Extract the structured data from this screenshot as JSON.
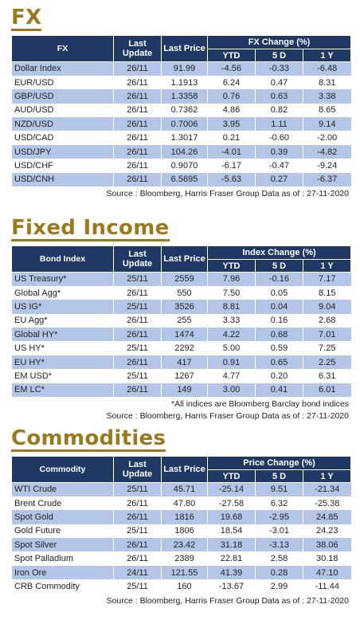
{
  "fx": {
    "title": "FX",
    "headers": {
      "name": "FX",
      "update": "Last Update",
      "price": "Last Price",
      "group": "FX Change (%)",
      "ytd": "YTD",
      "d5": "5 D",
      "y1": "1 Y"
    },
    "rows": [
      {
        "name": "Dollar Index",
        "update": "26/11",
        "price": "91.99",
        "ytd": "-4.56",
        "d5": "-0.33",
        "y1": "-6.48"
      },
      {
        "name": "EUR/USD",
        "update": "26/11",
        "price": "1.1913",
        "ytd": "6.24",
        "d5": "0.47",
        "y1": "8.31"
      },
      {
        "name": "GBP/USD",
        "update": "26/11",
        "price": "1.3358",
        "ytd": "0.76",
        "d5": "0.63",
        "y1": "3.38"
      },
      {
        "name": "AUD/USD",
        "update": "26/11",
        "price": "0.7362",
        "ytd": "4.86",
        "d5": "0.82",
        "y1": "8.65"
      },
      {
        "name": "NZD/USD",
        "update": "26/11",
        "price": "0.7006",
        "ytd": "3.95",
        "d5": "1.11",
        "y1": "9.14"
      },
      {
        "name": "USD/CAD",
        "update": "26/11",
        "price": "1.3017",
        "ytd": "0.21",
        "d5": "-0.60",
        "y1": "-2.00"
      },
      {
        "name": "USD/JPY",
        "update": "26/11",
        "price": "104.26",
        "ytd": "-4.01",
        "d5": "0.39",
        "y1": "-4.82"
      },
      {
        "name": "USD/CHF",
        "update": "26/11",
        "price": "0.9070",
        "ytd": "-6.17",
        "d5": "-0.47",
        "y1": "-9.24"
      },
      {
        "name": "USD/CNH",
        "update": "26/11",
        "price": "6.5695",
        "ytd": "-5.63",
        "d5": "0.27",
        "y1": "-6.37"
      }
    ],
    "source": "Source : Bloomberg, Harris Fraser Group Data as of : 27-11-2020"
  },
  "fixed_income": {
    "title": "Fixed Income",
    "headers": {
      "name": "Bond Index",
      "update": "Last Update",
      "price": "Last Price",
      "group": "Index Change (%)",
      "ytd": "YTD",
      "d5": "5 D",
      "y1": "1 Y"
    },
    "rows": [
      {
        "name": "US Treasury*",
        "update": "25/11",
        "price": "2559",
        "ytd": "7.96",
        "d5": "-0.16",
        "y1": "7.17"
      },
      {
        "name": "Global Agg*",
        "update": "26/11",
        "price": "550",
        "ytd": "7.50",
        "d5": "0.05",
        "y1": "8.15"
      },
      {
        "name": "US IG*",
        "update": "25/11",
        "price": "3526",
        "ytd": "8.81",
        "d5": "0.04",
        "y1": "9.04"
      },
      {
        "name": "EU Agg*",
        "update": "26/11",
        "price": "255",
        "ytd": "3.33",
        "d5": "0.16",
        "y1": "2.68"
      },
      {
        "name": "Global HY*",
        "update": "26/11",
        "price": "1474",
        "ytd": "4.22",
        "d5": "0.68",
        "y1": "7.01"
      },
      {
        "name": "US HY*",
        "update": "25/11",
        "price": "2292",
        "ytd": "5.00",
        "d5": "0.59",
        "y1": "7.25"
      },
      {
        "name": "EU HY*",
        "update": "26/11",
        "price": "417",
        "ytd": "0.91",
        "d5": "0.65",
        "y1": "2.25"
      },
      {
        "name": "EM USD*",
        "update": "25/11",
        "price": "1267",
        "ytd": "4.77",
        "d5": "0.20",
        "y1": "6.31"
      },
      {
        "name": "EM LC*",
        "update": "26/11",
        "price": "149",
        "ytd": "3.00",
        "d5": "0.41",
        "y1": "6.01"
      }
    ],
    "note": "*All indices are Bloomberg Barclay bond indices",
    "source": "Source : Bloomberg, Harris Fraser Group Data as of : 27-11-2020"
  },
  "commodities": {
    "title": "Commodities",
    "headers": {
      "name": "Commodity",
      "update": "Last Update",
      "price": "Last Price",
      "group": "Price Change (%)",
      "ytd": "YTD",
      "d5": "5 D",
      "y1": "1 Y"
    },
    "rows": [
      {
        "name": "WTI Crude",
        "update": "25/11",
        "price": "45.71",
        "ytd": "-25.14",
        "d5": "9.51",
        "y1": "-21.34"
      },
      {
        "name": "Brent Crude",
        "update": "26/11",
        "price": "47.80",
        "ytd": "-27.58",
        "d5": "6.32",
        "y1": "-25.38"
      },
      {
        "name": "Spot Gold",
        "update": "26/11",
        "price": "1816",
        "ytd": "19.68",
        "d5": "-2.95",
        "y1": "24.85"
      },
      {
        "name": "Gold Future",
        "update": "25/11",
        "price": "1806",
        "ytd": "18.54",
        "d5": "-3.01",
        "y1": "24.23"
      },
      {
        "name": "Spot Silver",
        "update": "26/11",
        "price": "23.42",
        "ytd": "31.18",
        "d5": "-3.13",
        "y1": "38.06"
      },
      {
        "name": "Spot Palladium",
        "update": "26/11",
        "price": "2389",
        "ytd": "22.81",
        "d5": "2.58",
        "y1": "30.18"
      },
      {
        "name": "Iron Ore",
        "update": "24/11",
        "price": "121.55",
        "ytd": "41.39",
        "d5": "0.28",
        "y1": "47.10"
      },
      {
        "name": "CRB Commodity",
        "update": "25/11",
        "price": "160",
        "ytd": "-13.67",
        "d5": "2.99",
        "y1": "-11.44"
      }
    ],
    "source": "Source : Bloomberg, Harris Fraser Group Data as of : 27-11-2020"
  }
}
